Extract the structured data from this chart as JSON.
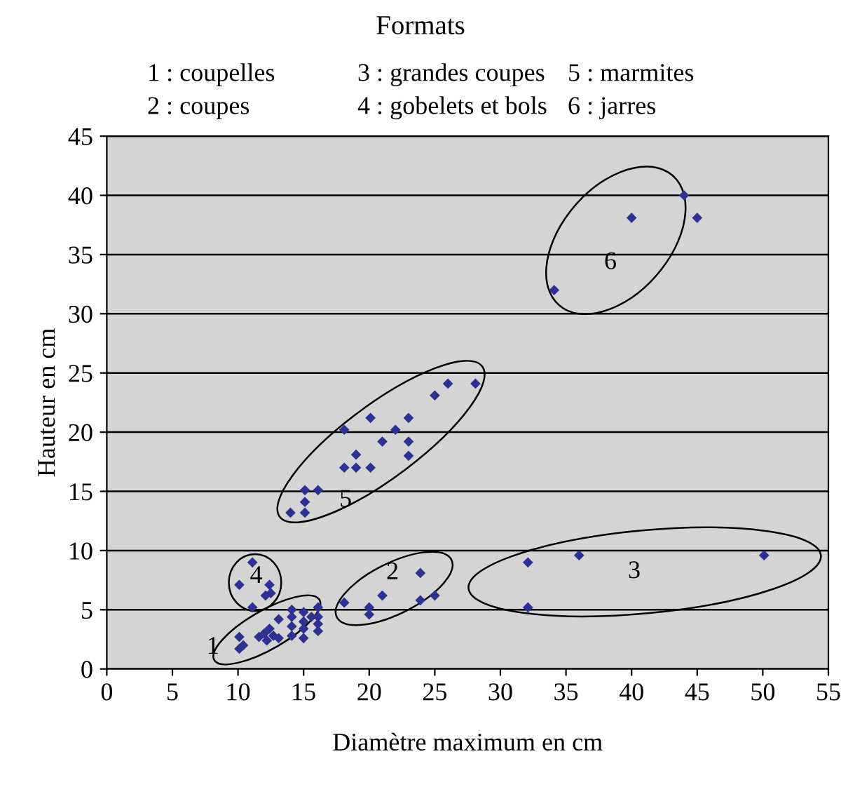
{
  "chart_data": {
    "type": "scatter",
    "title": "Formats",
    "xlabel": "Diamètre maximum en cm",
    "ylabel": "Hauteur en cm",
    "x": [
      10.1,
      10.4,
      10.1,
      11.6,
      12.0,
      12.4,
      12.7,
      12.2,
      13.1,
      13.1,
      14.1,
      14.1,
      14.1,
      14.1,
      15.0,
      15.0,
      15.0,
      15.0,
      15.6,
      16.1,
      16.1,
      16.1,
      16.1,
      11.1,
      10.1,
      12.4,
      12.5,
      12.1,
      11.1,
      18.1,
      20.0,
      20.0,
      21.0,
      23.9,
      23.9,
      25.0,
      32.1,
      32.1,
      36.0,
      50.1,
      34.1,
      40.0,
      44.0,
      45.0,
      14.0,
      15.1,
      15.1,
      15.1,
      16.1,
      18.1,
      19.0,
      20.1,
      19.0,
      18.1,
      20.1,
      21.0,
      22.0,
      23.0,
      23.0,
      23.0,
      25.0,
      26.0,
      28.1
    ],
    "values": [
      2.7,
      2.0,
      1.7,
      2.7,
      3.0,
      3.4,
      2.8,
      2.4,
      2.6,
      4.2,
      5.0,
      4.4,
      3.6,
      2.8,
      4.8,
      4.0,
      3.4,
      2.6,
      4.4,
      5.2,
      4.4,
      3.8,
      3.2,
      9.0,
      7.1,
      7.1,
      6.4,
      6.2,
      5.2,
      5.6,
      5.2,
      4.6,
      6.2,
      8.1,
      5.8,
      6.2,
      9.0,
      5.2,
      9.6,
      9.6,
      32.0,
      38.1,
      40.0,
      38.1,
      13.2,
      13.2,
      14.1,
      15.1,
      15.1,
      17.0,
      17.0,
      17.0,
      18.1,
      20.2,
      21.2,
      19.2,
      20.2,
      21.2,
      19.2,
      18.0,
      23.1,
      24.1,
      24.1
    ],
    "color": "#2e3192",
    "marker": "diamond",
    "xlim": [
      0,
      55
    ],
    "ylim": [
      0,
      45
    ],
    "xticks": [
      0,
      5,
      10,
      15,
      20,
      25,
      30,
      35,
      40,
      45,
      50,
      55
    ],
    "yticks": [
      0,
      5,
      10,
      15,
      20,
      25,
      30,
      35,
      40,
      45
    ],
    "grid": "y",
    "annotations": [
      "1 : coupelles",
      "2 : coupes",
      "3 : grandes coupes",
      "4 : gobelets et bols",
      "5 : marmites",
      "6 : jarres",
      "1",
      "4",
      "2",
      "3",
      "5",
      "6"
    ]
  }
}
